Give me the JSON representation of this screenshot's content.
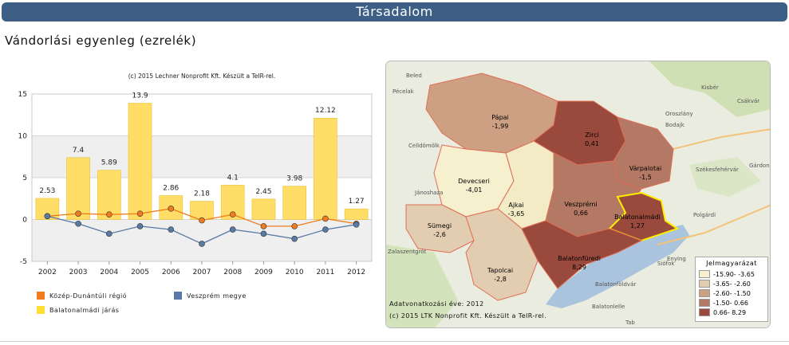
{
  "header": {
    "title": "Társadalom"
  },
  "section": {
    "title": "Vándorlási egyenleg (ezrelék)"
  },
  "chart_data": {
    "type": "bar",
    "subtitle": "(c) 2015 Lechner Nonprofit Kft. Készült a TeIR-rel.",
    "categories": [
      "2002",
      "2003",
      "2004",
      "2005",
      "2006",
      "2007",
      "2008",
      "2009",
      "2010",
      "2011",
      "2012"
    ],
    "series": [
      {
        "name": "Balatonalmádi járás",
        "kind": "bar",
        "color": "#ffdd66",
        "values": [
          2.53,
          7.4,
          5.89,
          13.9,
          2.86,
          2.18,
          4.1,
          2.45,
          3.98,
          12.12,
          1.27
        ],
        "labels": [
          "2.53",
          "7.4",
          "5.89",
          "13.9",
          "2.86",
          "2.18",
          "4.1",
          "2.45",
          "3.98",
          "12.12",
          "1.27"
        ]
      },
      {
        "name": "Közép-Dunántúli régió",
        "kind": "line",
        "color": "#f07c1e",
        "values": [
          0.4,
          0.7,
          0.6,
          0.7,
          1.3,
          -0.1,
          0.6,
          -0.8,
          -0.8,
          0.1,
          -0.5
        ]
      },
      {
        "name": "Veszprém megye",
        "kind": "line",
        "color": "#5a7aa6",
        "values": [
          0.4,
          -0.5,
          -1.7,
          -0.8,
          -1.2,
          -2.9,
          -1.2,
          -1.7,
          -2.3,
          -1.2,
          -0.6
        ]
      }
    ],
    "yticks": [
      "15",
      "10",
      "5",
      "0",
      "-5"
    ],
    "ylim": [
      -5,
      15
    ],
    "grid": true,
    "legend_position": "bottom"
  },
  "map": {
    "legend_title": "Jelmagyarázat",
    "legend": [
      {
        "label": "-15.90- -3.65",
        "color": "#f6f0cf"
      },
      {
        "label": "-3.65- -2.60",
        "color": "#e3cdb0"
      },
      {
        "label": "-2.60- -1.50",
        "color": "#cda083"
      },
      {
        "label": "-1.50- 0.66",
        "color": "#b47964"
      },
      {
        "label": "0.66- 8.29",
        "color": "#9a4a3c"
      }
    ],
    "regions": [
      {
        "name": "Pápai",
        "value": "-1,99",
        "color": "#cda083"
      },
      {
        "name": "Zirci",
        "value": "0,41",
        "color": "#9a4a3c"
      },
      {
        "name": "Várpalotai",
        "value": "-1,5",
        "color": "#b47964"
      },
      {
        "name": "Devecseri",
        "value": "-4,01",
        "color": "#f6f0cf"
      },
      {
        "name": "Ajkai",
        "value": "-3,65",
        "color": "#f2ebc6"
      },
      {
        "name": "Veszprémi",
        "value": "0,66",
        "color": "#b47964"
      },
      {
        "name": "Balatonalmádi",
        "value": "1,27",
        "color": "#9a4a3c"
      },
      {
        "name": "Sümegi",
        "value": "-2,6",
        "color": "#e3cdb0"
      },
      {
        "name": "Tapolcai",
        "value": "-2,8",
        "color": "#e3cdb0"
      },
      {
        "name": "Balatonfüredi",
        "value": "8,29",
        "color": "#9a4a3c"
      }
    ],
    "places": [
      "Beled",
      "Pécelak",
      "Celldömölk",
      "Jánoshaza",
      "Zalaszentgrót",
      "Kisbér",
      "Oroszlány",
      "Csákvár",
      "Bodajk",
      "Székesfehérvár",
      "Gárdony",
      "Polgárdi",
      "Siófok",
      "Enying",
      "Balatonföldvár",
      "Balatonlelle",
      "Tab"
    ],
    "credit1": "Adatvonatkozási éve: 2012",
    "credit2": "(c) 2015 LTK Nonprofit Kft. Készült a TeIR-rel."
  }
}
